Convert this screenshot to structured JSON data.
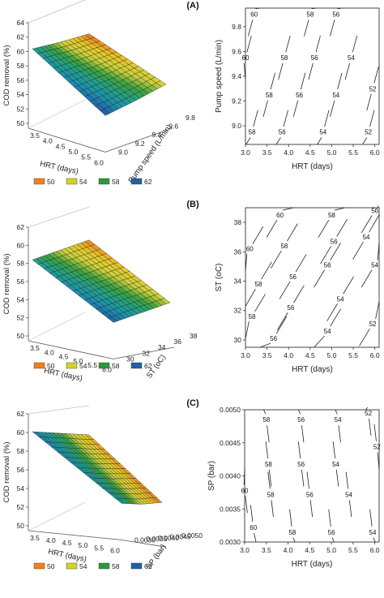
{
  "legend": [
    {
      "label": "50",
      "color": "#f0801e"
    },
    {
      "label": "54",
      "color": "#d2d22a"
    },
    {
      "label": "58",
      "color": "#2a9a3a"
    },
    {
      "label": "62",
      "color": "#1f62a3"
    }
  ],
  "panels": [
    {
      "tag": "(A)",
      "surface": {
        "zlabel": "COD removal (%)",
        "xlabel": "HRT (days)",
        "ylabel": "Pump speed (L/min)",
        "zticks": [
          "50",
          "52",
          "54",
          "56",
          "58",
          "60",
          "62",
          "64"
        ],
        "xticks": [
          "3.5",
          "4.0",
          "4.5",
          "5.0",
          "5.5",
          "6.0"
        ],
        "yticks": [
          "9.0",
          "9.2",
          "9.4",
          "9.6",
          "9.8"
        ]
      },
      "contour": {
        "xlabel": "HRT (days)",
        "ylabel": "Pump speed (L/min)",
        "xticks": [
          "3.0",
          "3.5",
          "4.0",
          "4.5",
          "5.0",
          "5.5",
          "6.0"
        ],
        "yticks": [
          "9.0",
          "9.2",
          "9.4",
          "9.6",
          "9.8"
        ],
        "labels": [
          {
            "t": "60",
            "x": 3.2,
            "y": 9.9
          },
          {
            "t": "58",
            "x": 4.5,
            "y": 9.9
          },
          {
            "t": "56",
            "x": 5.1,
            "y": 9.9
          },
          {
            "t": "60",
            "x": 3.0,
            "y": 9.55
          },
          {
            "t": "58",
            "x": 3.9,
            "y": 9.55
          },
          {
            "t": "56",
            "x": 4.6,
            "y": 9.55
          },
          {
            "t": "54",
            "x": 5.45,
            "y": 9.55
          },
          {
            "t": "58",
            "x": 3.55,
            "y": 9.25
          },
          {
            "t": "56",
            "x": 4.25,
            "y": 9.25
          },
          {
            "t": "54",
            "x": 5.1,
            "y": 9.25
          },
          {
            "t": "52",
            "x": 5.95,
            "y": 9.3
          },
          {
            "t": "58",
            "x": 3.15,
            "y": 8.95
          },
          {
            "t": "56",
            "x": 3.85,
            "y": 8.95
          },
          {
            "t": "54",
            "x": 4.8,
            "y": 8.95
          },
          {
            "t": "52",
            "x": 5.85,
            "y": 8.95
          }
        ]
      }
    },
    {
      "tag": "(B)",
      "surface": {
        "zlabel": "COD removal (%)",
        "xlabel": "HRT (days)",
        "ylabel": "ST (oC)",
        "zticks": [
          "50",
          "52",
          "54",
          "56",
          "58",
          "60",
          "62"
        ],
        "xticks": [
          "3.5",
          "4.0",
          "4.5",
          "5.0",
          "5.5",
          "6.0"
        ],
        "yticks": [
          "30",
          "32",
          "34",
          "36",
          "38"
        ]
      },
      "contour": {
        "xlabel": "HRT (days)",
        "ylabel": "ST (oC)",
        "xticks": [
          "3.0",
          "3.5",
          "4.0",
          "4.5",
          "5.0",
          "5.5",
          "6.0"
        ],
        "yticks": [
          "30",
          "32",
          "34",
          "36",
          "38"
        ],
        "labels": [
          {
            "t": "60",
            "x": 3.8,
            "y": 38.5
          },
          {
            "t": "58",
            "x": 5.0,
            "y": 38.5
          },
          {
            "t": "56",
            "x": 6.0,
            "y": 38.8
          },
          {
            "t": "60",
            "x": 3.1,
            "y": 36.2
          },
          {
            "t": "58",
            "x": 3.9,
            "y": 36.4
          },
          {
            "t": "56",
            "x": 5.05,
            "y": 36.7
          },
          {
            "t": "54",
            "x": 5.8,
            "y": 37.0
          },
          {
            "t": "58",
            "x": 3.3,
            "y": 33.8
          },
          {
            "t": "56",
            "x": 4.1,
            "y": 34.3
          },
          {
            "t": "56",
            "x": 4.9,
            "y": 35.1
          },
          {
            "t": "54",
            "x": 6.0,
            "y": 35.1
          },
          {
            "t": "58",
            "x": 3.15,
            "y": 31.6
          },
          {
            "t": "56",
            "x": 4.05,
            "y": 32.2
          },
          {
            "t": "54",
            "x": 5.2,
            "y": 32.8
          },
          {
            "t": "56",
            "x": 3.65,
            "y": 30.1
          },
          {
            "t": "54",
            "x": 4.9,
            "y": 30.6
          },
          {
            "t": "52",
            "x": 5.95,
            "y": 31.1
          }
        ]
      }
    },
    {
      "tag": "(C)",
      "surface": {
        "zlabel": "COD removal (%)",
        "xlabel": "HRT (days)",
        "ylabel": "SP (bar)",
        "zticks": [
          "50",
          "52",
          "54",
          "56",
          "58",
          "60",
          "62"
        ],
        "xticks": [
          "3.5",
          "4.0",
          "4.5",
          "5.0",
          "5.5",
          "6.0"
        ],
        "yticks": [
          "0.0030",
          "0.0035",
          "0.0040",
          "0.0045",
          "0.0050"
        ]
      },
      "contour": {
        "xlabel": "HRT (days)",
        "ylabel": "SP (bar)",
        "xticks": [
          "3.0",
          "3.5",
          "4.0",
          "4.5",
          "5.0",
          "5.5",
          "6.0"
        ],
        "yticks": [
          "0.0030",
          "0.0035",
          "0.0040",
          "0.0045",
          "0.0050"
        ],
        "labels": [
          {
            "t": "58",
            "x": 3.5,
            "y": 0.00485
          },
          {
            "t": "56",
            "x": 4.3,
            "y": 0.00485
          },
          {
            "t": "54",
            "x": 5.15,
            "y": 0.00485
          },
          {
            "t": "52",
            "x": 5.85,
            "y": 0.00495
          },
          {
            "t": "58",
            "x": 3.55,
            "y": 0.00418
          },
          {
            "t": "56",
            "x": 4.3,
            "y": 0.00418
          },
          {
            "t": "54",
            "x": 5.1,
            "y": 0.00418
          },
          {
            "t": "52",
            "x": 6.05,
            "y": 0.00444
          },
          {
            "t": "60",
            "x": 3.0,
            "y": 0.00378
          },
          {
            "t": "58",
            "x": 3.6,
            "y": 0.00372
          },
          {
            "t": "56",
            "x": 4.5,
            "y": 0.00372
          },
          {
            "t": "54",
            "x": 5.4,
            "y": 0.00372
          },
          {
            "t": "60",
            "x": 3.2,
            "y": 0.00322
          },
          {
            "t": "58",
            "x": 4.1,
            "y": 0.00315
          },
          {
            "t": "56",
            "x": 5.0,
            "y": 0.00315
          },
          {
            "t": "54",
            "x": 5.95,
            "y": 0.00315
          }
        ]
      }
    }
  ],
  "chart_data": [
    {
      "type": "surface",
      "title": "(A)",
      "xlabel": "HRT (days)",
      "ylabel": "Pump speed (L/min)",
      "zlabel": "COD removal (%)",
      "xlim": [
        3.0,
        6.0
      ],
      "ylim": [
        8.85,
        9.95
      ],
      "zlim": [
        50,
        64
      ],
      "x": [
        3.0,
        4.5,
        6.0
      ],
      "y": [
        8.85,
        9.4,
        9.95
      ],
      "z": [
        [
          58.5,
          60.5,
          62.5
        ],
        [
          53.8,
          55.8,
          57.8
        ],
        [
          49.6,
          51.6,
          53.6
        ]
      ],
      "legend": [
        "50",
        "54",
        "58",
        "62"
      ]
    },
    {
      "type": "contour",
      "title": "(A)",
      "xlabel": "HRT (days)",
      "ylabel": "Pump speed (L/min)",
      "xlim": [
        3.0,
        6.1
      ],
      "ylim": [
        8.85,
        9.95
      ],
      "levels": [
        52,
        54,
        56,
        58,
        60
      ]
    },
    {
      "type": "surface",
      "title": "(B)",
      "xlabel": "HRT (days)",
      "ylabel": "ST (oC)",
      "zlabel": "COD removal (%)",
      "xlim": [
        3.0,
        6.0
      ],
      "ylim": [
        29.5,
        39
      ],
      "zlim": [
        50,
        63
      ],
      "x": [
        3.0,
        4.5,
        6.0
      ],
      "y": [
        29.5,
        34.25,
        39
      ],
      "z": [
        [
          58,
          60,
          62
        ],
        [
          54,
          56,
          58
        ],
        [
          50,
          52,
          54
        ]
      ],
      "legend": [
        "50",
        "54",
        "58",
        "62"
      ]
    },
    {
      "type": "contour",
      "title": "(B)",
      "xlabel": "HRT (days)",
      "ylabel": "ST (oC)",
      "xlim": [
        3.0,
        6.1
      ],
      "ylim": [
        29.5,
        39
      ],
      "levels": [
        52,
        54,
        56,
        58,
        60
      ]
    },
    {
      "type": "surface",
      "title": "(C)",
      "xlabel": "HRT (days)",
      "ylabel": "SP (bar)",
      "zlabel": "COD removal (%)",
      "xlim": [
        3.0,
        6.0
      ],
      "ylim": [
        0.003,
        0.005
      ],
      "zlim": [
        50,
        62
      ],
      "x": [
        3.0,
        4.5,
        6.0
      ],
      "y": [
        0.003,
        0.004,
        0.005
      ],
      "z": [
        [
          61,
          60,
          59
        ],
        [
          56,
          55,
          54
        ],
        [
          51,
          50.5,
          50
        ]
      ],
      "legend": [
        "50",
        "54",
        "58",
        "62"
      ]
    },
    {
      "type": "contour",
      "title": "(C)",
      "xlabel": "HRT (days)",
      "ylabel": "SP (bar)",
      "xlim": [
        3.0,
        6.1
      ],
      "ylim": [
        0.003,
        0.005
      ],
      "levels": [
        52,
        54,
        56,
        58,
        60
      ]
    }
  ]
}
